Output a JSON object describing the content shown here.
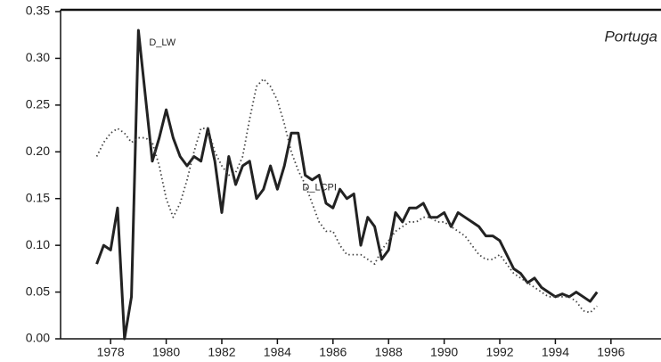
{
  "chart_data": {
    "type": "line",
    "title": "Portuga",
    "x": [
      1977.5,
      1977.75,
      1978,
      1978.25,
      1978.5,
      1978.75,
      1979,
      1979.25,
      1979.5,
      1979.75,
      1980,
      1980.25,
      1980.5,
      1980.75,
      1981,
      1981.25,
      1981.5,
      1981.75,
      1982,
      1982.25,
      1982.5,
      1982.75,
      1983,
      1983.25,
      1983.5,
      1983.75,
      1984,
      1984.25,
      1984.5,
      1984.75,
      1985,
      1985.25,
      1985.5,
      1985.75,
      1986,
      1986.25,
      1986.5,
      1986.75,
      1987,
      1987.25,
      1987.5,
      1987.75,
      1988,
      1988.25,
      1988.5,
      1988.75,
      1989,
      1989.25,
      1989.5,
      1989.75,
      1990,
      1990.25,
      1990.5,
      1990.75,
      1991,
      1991.25,
      1991.5,
      1991.75,
      1992,
      1992.25,
      1992.5,
      1992.75,
      1993,
      1993.25,
      1993.5,
      1993.75,
      1994,
      1994.25,
      1994.5,
      1994.75,
      1995,
      1995.25,
      1995.5
    ],
    "series": [
      {
        "name": "D_LW",
        "color": "#222222",
        "style": "solid",
        "values": [
          0.08,
          0.1,
          0.095,
          0.14,
          0.0,
          0.045,
          0.33,
          0.26,
          0.19,
          0.215,
          0.245,
          0.215,
          0.195,
          0.185,
          0.195,
          0.19,
          0.225,
          0.19,
          0.135,
          0.195,
          0.165,
          0.185,
          0.19,
          0.15,
          0.16,
          0.185,
          0.16,
          0.185,
          0.22,
          0.22,
          0.175,
          0.17,
          0.175,
          0.145,
          0.14,
          0.16,
          0.15,
          0.155,
          0.1,
          0.13,
          0.12,
          0.085,
          0.095,
          0.135,
          0.125,
          0.14,
          0.14,
          0.145,
          0.13,
          0.13,
          0.135,
          0.12,
          0.135,
          0.13,
          0.125,
          0.12,
          0.11,
          0.11,
          0.105,
          0.09,
          0.075,
          0.07,
          0.06,
          0.065,
          0.055,
          0.05,
          0.045,
          0.048,
          0.045,
          0.05,
          0.045,
          0.04,
          0.05
        ]
      },
      {
        "name": "D_LCPI",
        "color": "#444444",
        "style": "dotted",
        "values": [
          0.195,
          0.21,
          0.22,
          0.225,
          0.22,
          0.21,
          0.215,
          0.215,
          0.21,
          0.185,
          0.15,
          0.13,
          0.145,
          0.17,
          0.2,
          0.225,
          0.225,
          0.2,
          0.185,
          0.175,
          0.178,
          0.195,
          0.235,
          0.27,
          0.278,
          0.27,
          0.255,
          0.23,
          0.2,
          0.18,
          0.165,
          0.145,
          0.125,
          0.115,
          0.115,
          0.1,
          0.09,
          0.09,
          0.09,
          0.085,
          0.08,
          0.095,
          0.105,
          0.115,
          0.12,
          0.125,
          0.125,
          0.13,
          0.13,
          0.125,
          0.125,
          0.12,
          0.115,
          0.11,
          0.1,
          0.09,
          0.085,
          0.085,
          0.09,
          0.08,
          0.07,
          0.065,
          0.06,
          0.055,
          0.05,
          0.045,
          0.045,
          0.045,
          0.045,
          0.04,
          0.03,
          0.028,
          0.035
        ]
      }
    ],
    "xlim": [
      1976.2,
      1997.8
    ],
    "xticks": [
      1978,
      1980,
      1982,
      1984,
      1986,
      1988,
      1990,
      1992,
      1994,
      1996
    ],
    "ylim": [
      0,
      0.35
    ],
    "yticks": [
      {
        "value": 0,
        "label": "0.00"
      },
      {
        "value": 0.05,
        "label": "0.05"
      },
      {
        "value": 0.1,
        "label": "0.10"
      },
      {
        "value": 0.15,
        "label": "0.15"
      },
      {
        "value": 0.2,
        "label": "0.20"
      },
      {
        "value": 0.25,
        "label": "0.25"
      },
      {
        "value": 0.3,
        "label": "0.30"
      },
      {
        "value": 0.35,
        "label": "0.35"
      }
    ]
  }
}
